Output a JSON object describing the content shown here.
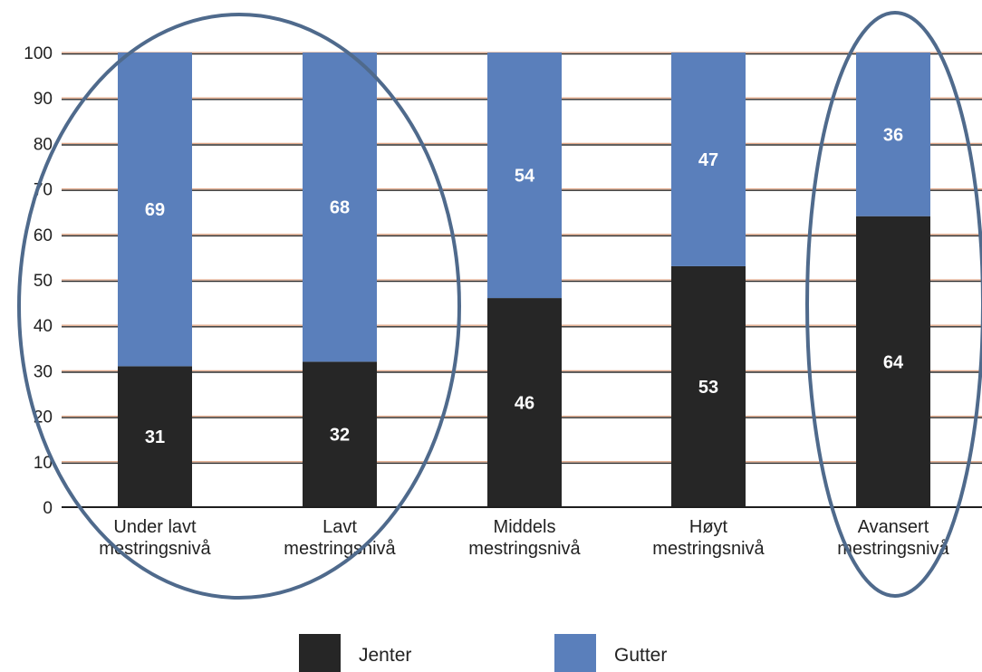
{
  "chart_data": {
    "type": "bar",
    "stacked": true,
    "categories": [
      [
        "Under lavt",
        "mestringsnivå"
      ],
      [
        "Lavt",
        "mestringsnivå"
      ],
      [
        "Middels",
        "mestringsnivå"
      ],
      [
        "Høyt",
        "mestringsnivå"
      ],
      [
        "Avansert",
        "mestringsnivå"
      ]
    ],
    "series": [
      {
        "name": "Jenter",
        "values": [
          31,
          32,
          46,
          53,
          64
        ],
        "color": "#262626"
      },
      {
        "name": "Gutter",
        "values": [
          69,
          68,
          54,
          47,
          36
        ],
        "color": "#5a7fbb"
      }
    ],
    "data_labels": {
      "Jenter": [
        "31",
        "32",
        "46",
        "53",
        "64"
      ],
      "Gutter": [
        "69",
        "68",
        "54",
        "47",
        "36"
      ]
    },
    "yticks": [
      "0",
      "10",
      "20",
      "30",
      "40",
      "50",
      "60",
      "70",
      "80",
      "90",
      "100"
    ],
    "ylim": [
      0,
      100
    ],
    "grid": true,
    "legend_position": "bottom",
    "annotations": [
      {
        "shape": "ellipse",
        "encloses_categories": [
          0,
          1
        ],
        "color": "#4f6a8c"
      },
      {
        "shape": "ellipse",
        "encloses_categories": [
          4
        ],
        "color": "#4f6a8c"
      }
    ]
  }
}
